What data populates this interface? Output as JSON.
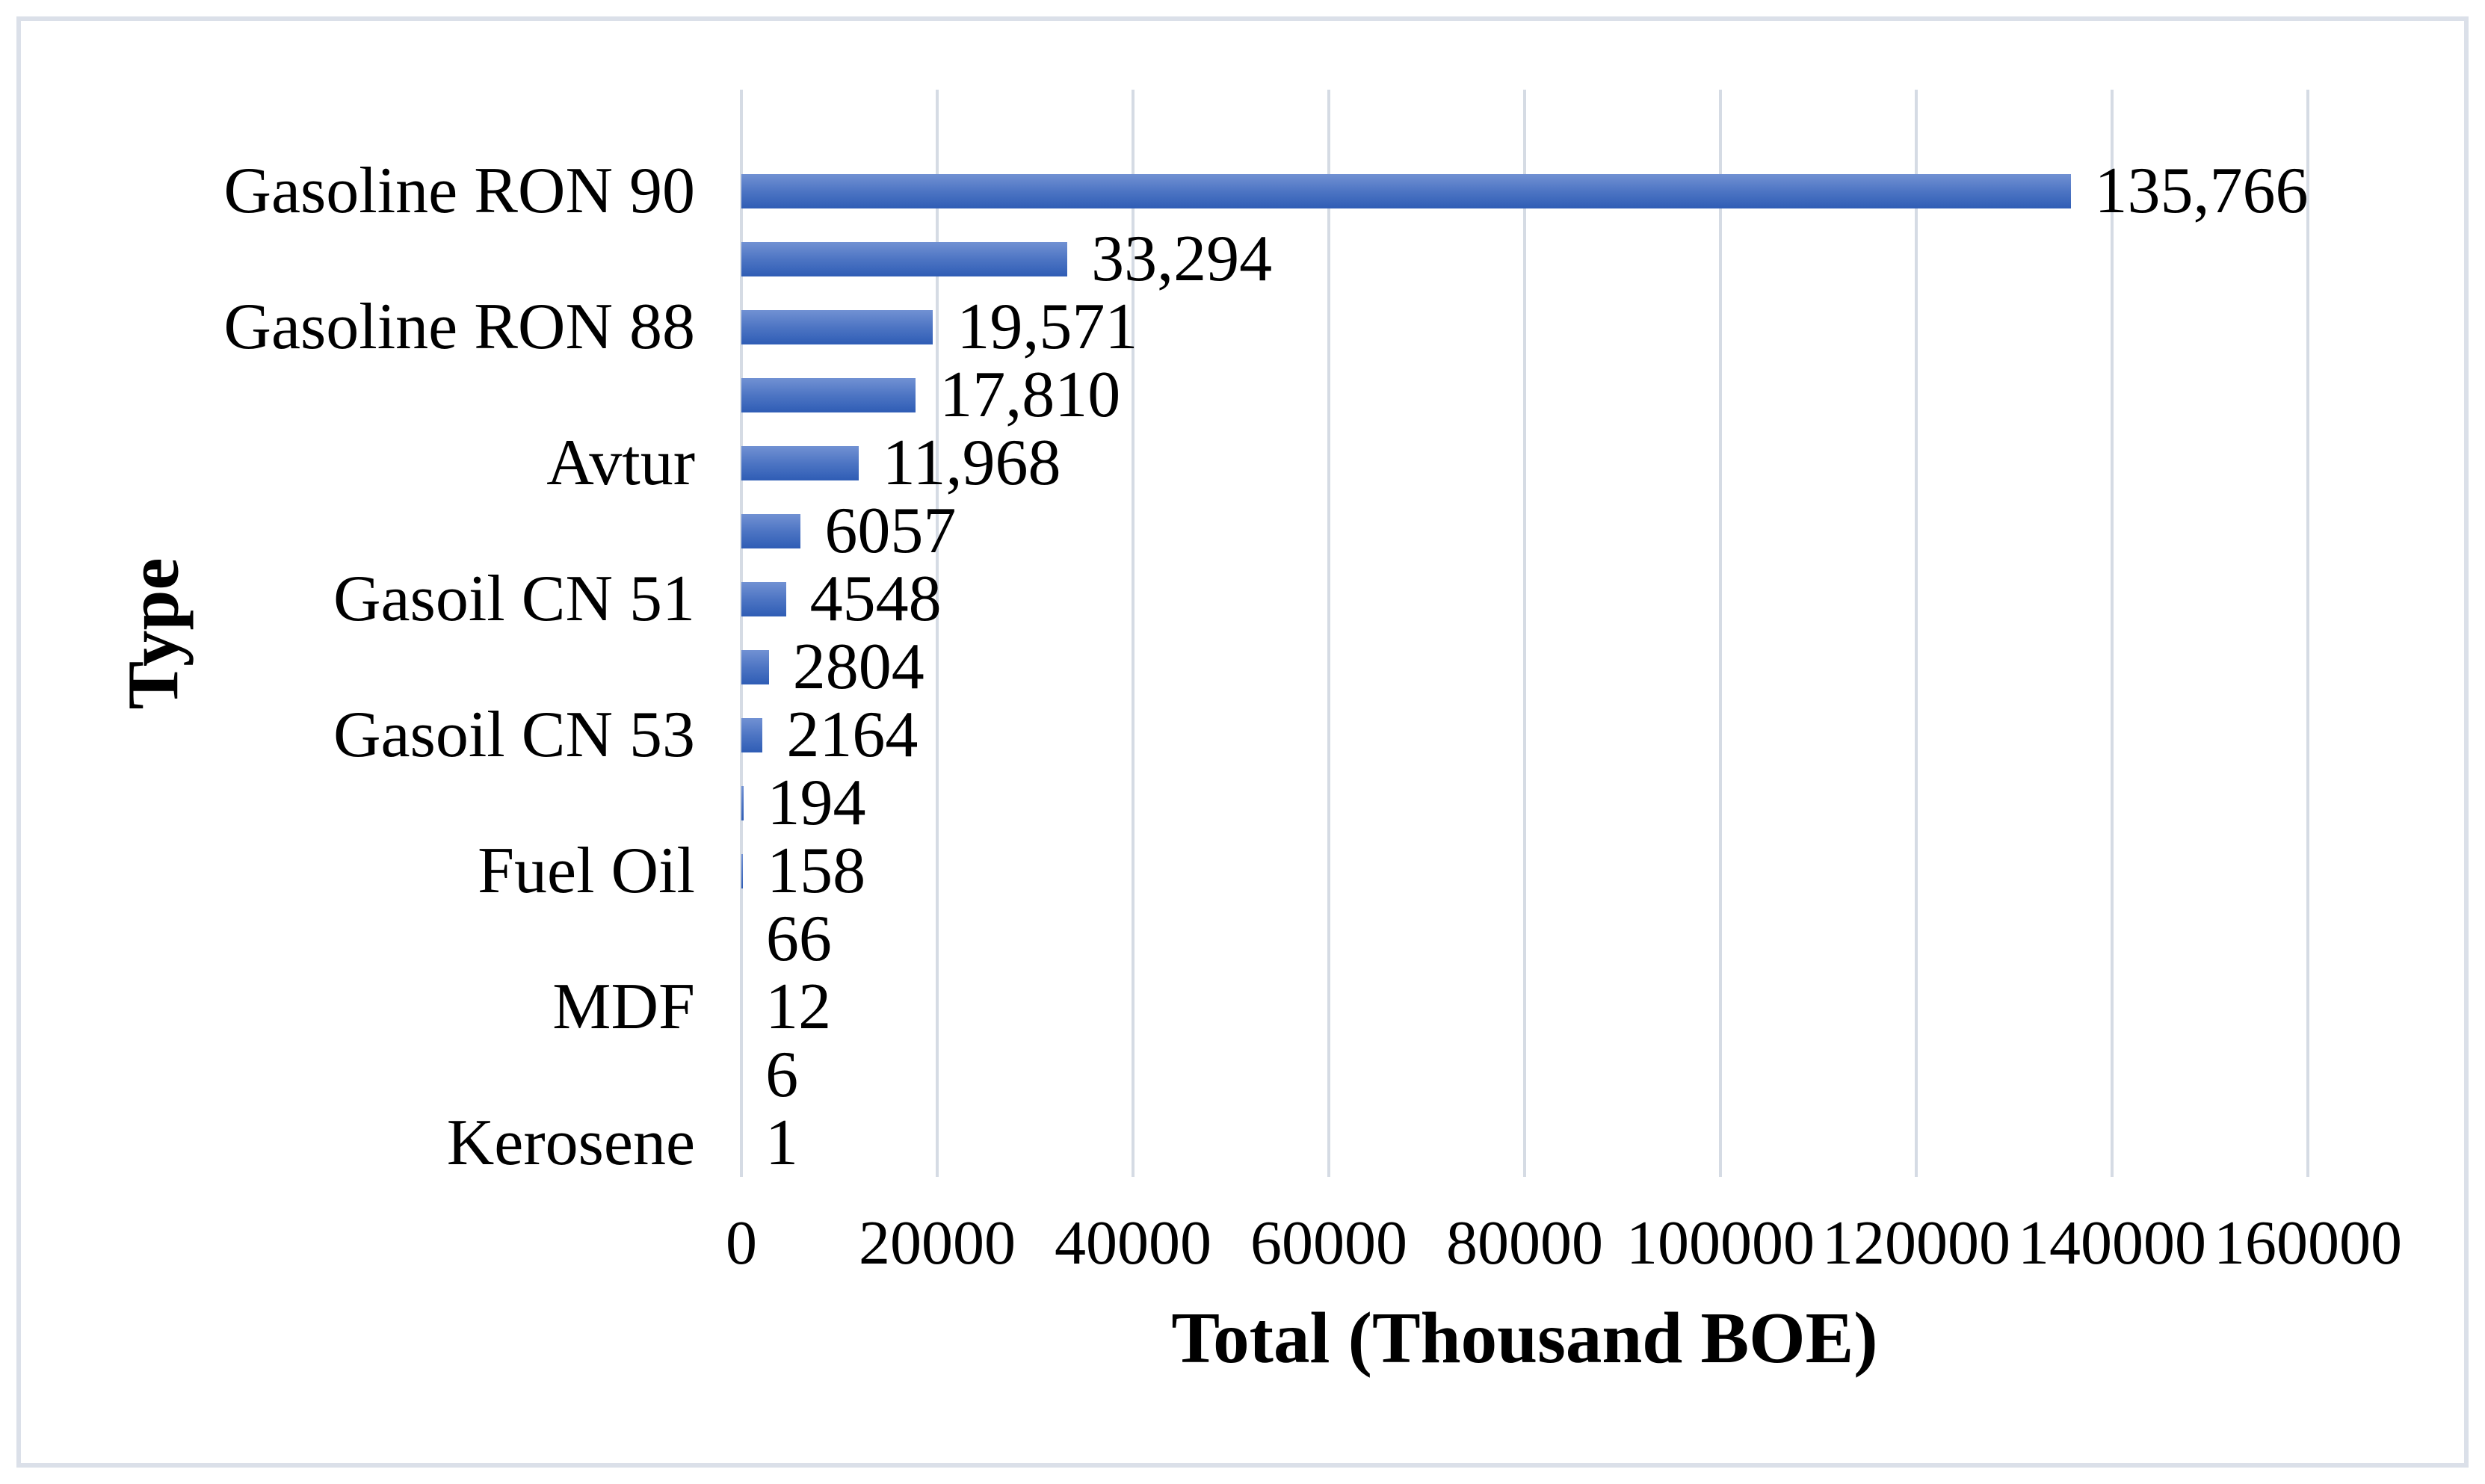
{
  "chart_data": {
    "type": "bar",
    "orientation": "horizontal",
    "xlabel": "Total (Thousand BOE)",
    "ylabel": "Type",
    "xlim": [
      0,
      160000
    ],
    "x_ticks": [
      "0",
      "20000",
      "40000",
      "60000",
      "80000",
      "100000",
      "120000",
      "140000",
      "160000"
    ],
    "grid": "vertical-only",
    "legend": "none",
    "colors": {
      "bar_gradient_top": "#7191d3",
      "bar_gradient_bottom": "#2f5db5",
      "gridline": "#d5dbe4",
      "frame_border": "#dbe0e9",
      "text": "#000000"
    },
    "rows": [
      {
        "axis_label": "Gasoline RON 90",
        "value": 135766,
        "label": "135,766"
      },
      {
        "axis_label": "",
        "value": 33294,
        "label": "33,294"
      },
      {
        "axis_label": "Gasoline RON 88",
        "value": 19571,
        "label": "19,571"
      },
      {
        "axis_label": "",
        "value": 17810,
        "label": "17,810"
      },
      {
        "axis_label": "Avtur",
        "value": 11968,
        "label": "11,968"
      },
      {
        "axis_label": "",
        "value": 6057,
        "label": "6057"
      },
      {
        "axis_label": "Gasoil CN 51",
        "value": 4548,
        "label": "4548"
      },
      {
        "axis_label": "",
        "value": 2804,
        "label": "2804"
      },
      {
        "axis_label": "Gasoil CN 53",
        "value": 2164,
        "label": "2164"
      },
      {
        "axis_label": "",
        "value": 194,
        "label": "194"
      },
      {
        "axis_label": "Fuel Oil",
        "value": 158,
        "label": "158"
      },
      {
        "axis_label": "",
        "value": 66,
        "label": "66"
      },
      {
        "axis_label": "MDF",
        "value": 12,
        "label": "12"
      },
      {
        "axis_label": "",
        "value": 6,
        "label": "6"
      },
      {
        "axis_label": "Kerosene",
        "value": 1,
        "label": "1"
      }
    ]
  }
}
